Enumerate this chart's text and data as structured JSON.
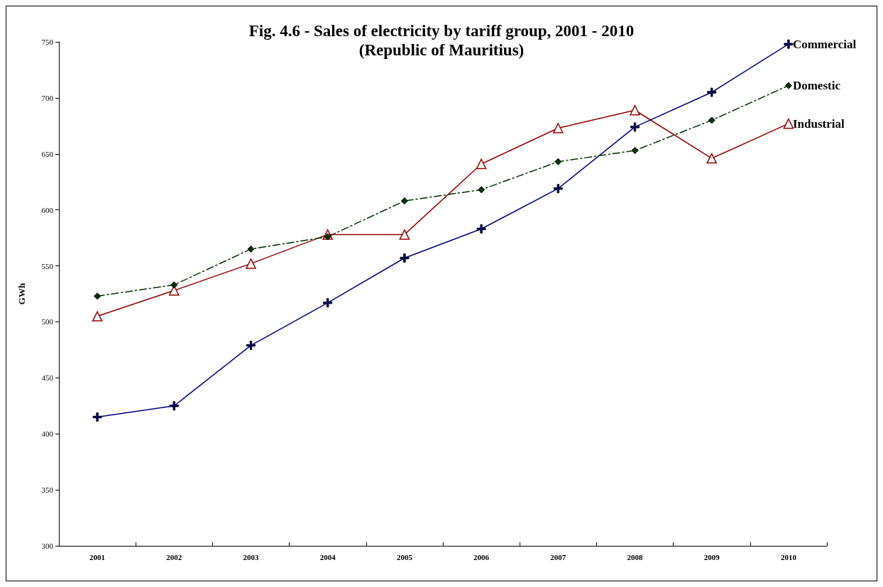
{
  "chart_data": {
    "type": "line",
    "title": "Fig. 4.6 - Sales of electricity by tariff group, 2001 - 2010",
    "subtitle": "(Republic of Mauritius)",
    "ylabel": "GWh",
    "categories": [
      "2001",
      "2002",
      "2003",
      "2004",
      "2005",
      "2006",
      "2007",
      "2008",
      "2009",
      "2010"
    ],
    "series": [
      {
        "name": "Commercial",
        "color": "#000080",
        "marker": "cross",
        "line_style": "solid",
        "values": [
          415,
          425,
          479,
          517,
          557,
          583,
          619,
          674,
          705,
          748
        ]
      },
      {
        "name": "Domestic",
        "color": "#003300",
        "marker": "diamond",
        "line_style": "dashed",
        "values": [
          523,
          533,
          565,
          576,
          608,
          618,
          643,
          653,
          680,
          711
        ]
      },
      {
        "name": "Industrial",
        "color": "#990000",
        "marker": "triangle",
        "line_style": "solid",
        "values": [
          505,
          528,
          552,
          578,
          578,
          641,
          673,
          689,
          646,
          677
        ]
      }
    ],
    "ylim": [
      300,
      750
    ],
    "yticks": [
      300,
      350,
      400,
      450,
      500,
      550,
      600,
      650,
      700,
      750
    ],
    "grid": false,
    "legend": false
  }
}
